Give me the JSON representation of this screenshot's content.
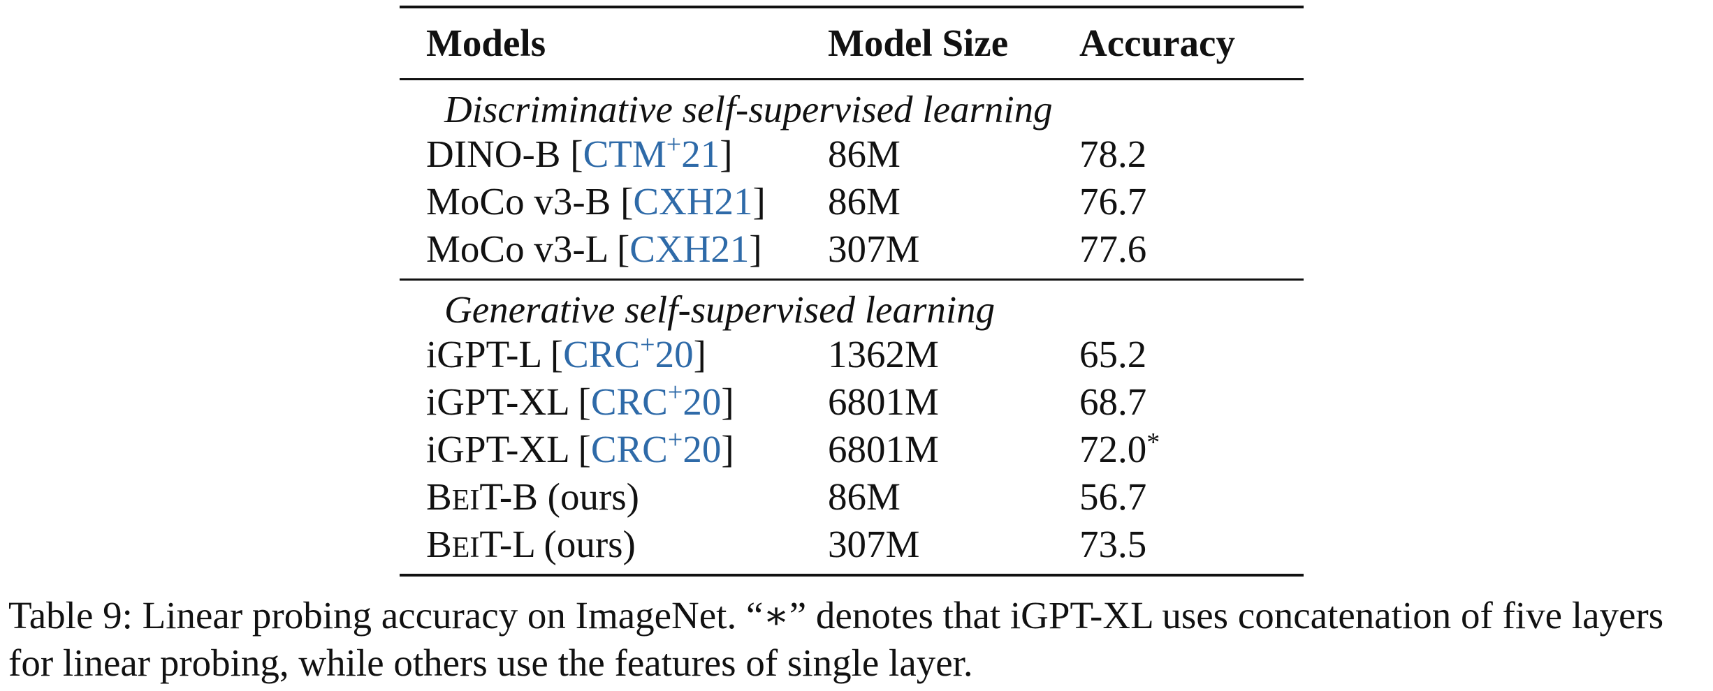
{
  "table": {
    "headers": {
      "model": "Models",
      "size": "Model Size",
      "accuracy": "Accuracy"
    },
    "groups": [
      {
        "title": "Discriminative self-supervised learning",
        "rows": [
          {
            "name": "DINO-B",
            "cite_main": "CTM",
            "cite_sup": "+",
            "cite_year": "21",
            "size": "86M",
            "accuracy": "78.2"
          },
          {
            "name": "MoCo v3-B",
            "cite_main": "CXH21",
            "cite_sup": "",
            "cite_year": "",
            "size": "86M",
            "accuracy": "76.7"
          },
          {
            "name": "MoCo v3-L",
            "cite_main": "CXH21",
            "cite_sup": "",
            "cite_year": "",
            "size": "307M",
            "accuracy": "77.6"
          }
        ]
      },
      {
        "title": "Generative self-supervised learning",
        "rows": [
          {
            "name": "iGPT-L",
            "cite_main": "CRC",
            "cite_sup": "+",
            "cite_year": "20",
            "size": "1362M",
            "accuracy": "65.2"
          },
          {
            "name": "iGPT-XL",
            "cite_main": "CRC",
            "cite_sup": "+",
            "cite_year": "20",
            "size": "6801M",
            "accuracy": "68.7"
          },
          {
            "name": "iGPT-XL",
            "cite_main": "CRC",
            "cite_sup": "+",
            "cite_year": "20",
            "size": "6801M",
            "accuracy": "72.0",
            "accuracy_mark": "*"
          }
        ]
      }
    ],
    "ours": [
      {
        "name_b": "B",
        "name_ei": "E",
        "name_i": "I",
        "name_rest": "T-B (ours)",
        "size": "86M",
        "accuracy": "56.7"
      },
      {
        "name_b": "B",
        "name_ei": "E",
        "name_i": "I",
        "name_rest": "T-L (ours)",
        "size": "307M",
        "accuracy": "73.5"
      }
    ]
  },
  "caption": "Table 9:  Linear probing accuracy on ImageNet. “∗” denotes that iGPT-XL uses concatenation of five layers for linear probing, while others use the features of single layer."
}
